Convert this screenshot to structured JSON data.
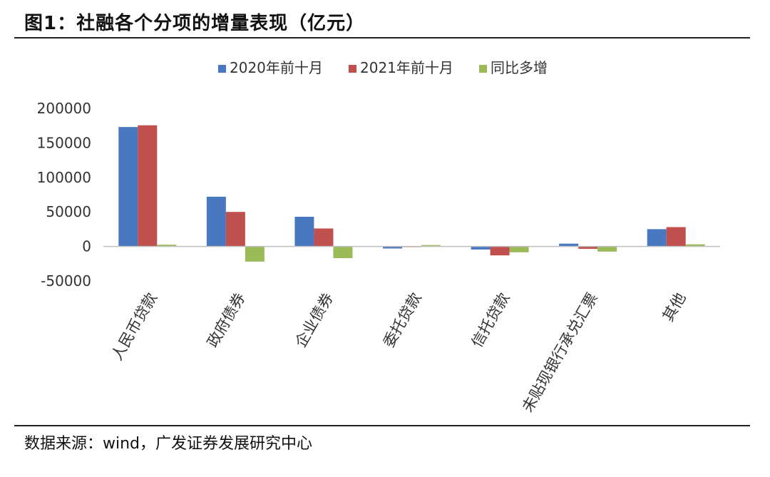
{
  "header": {
    "title": "图1：社融各个分项的增量表现（亿元）"
  },
  "footer": {
    "source": "数据来源：wind，广发证券发展研究中心"
  },
  "colors": {
    "s2020": "#4a78c0",
    "s2021": "#c0504d",
    "diff": "#9bbb59",
    "axis": "#bfbfbf"
  },
  "chart_data": {
    "type": "bar",
    "title": "社融各个分项的增量表现（亿元）",
    "categories": [
      "人民币贷款",
      "政府债券",
      "企业债券",
      "委托贷款",
      "信托贷款",
      "未贴现银行承兑汇票",
      "其他"
    ],
    "series": [
      {
        "name": "2020年前十月",
        "values": [
          173000,
          72000,
          43000,
          -3000,
          -4500,
          4000,
          25000
        ]
      },
      {
        "name": "2021年前十月",
        "values": [
          175500,
          50000,
          26000,
          -1000,
          -13000,
          -3500,
          28000
        ]
      },
      {
        "name": "同比多增",
        "values": [
          2500,
          -22000,
          -17000,
          2000,
          -8500,
          -7500,
          3000
        ]
      }
    ],
    "ylim": [
      -50000,
      200000
    ],
    "yticks": [
      "-50000",
      "0",
      "50000",
      "100000",
      "150000",
      "200000"
    ],
    "legend_position": "top-center",
    "grid": false
  }
}
